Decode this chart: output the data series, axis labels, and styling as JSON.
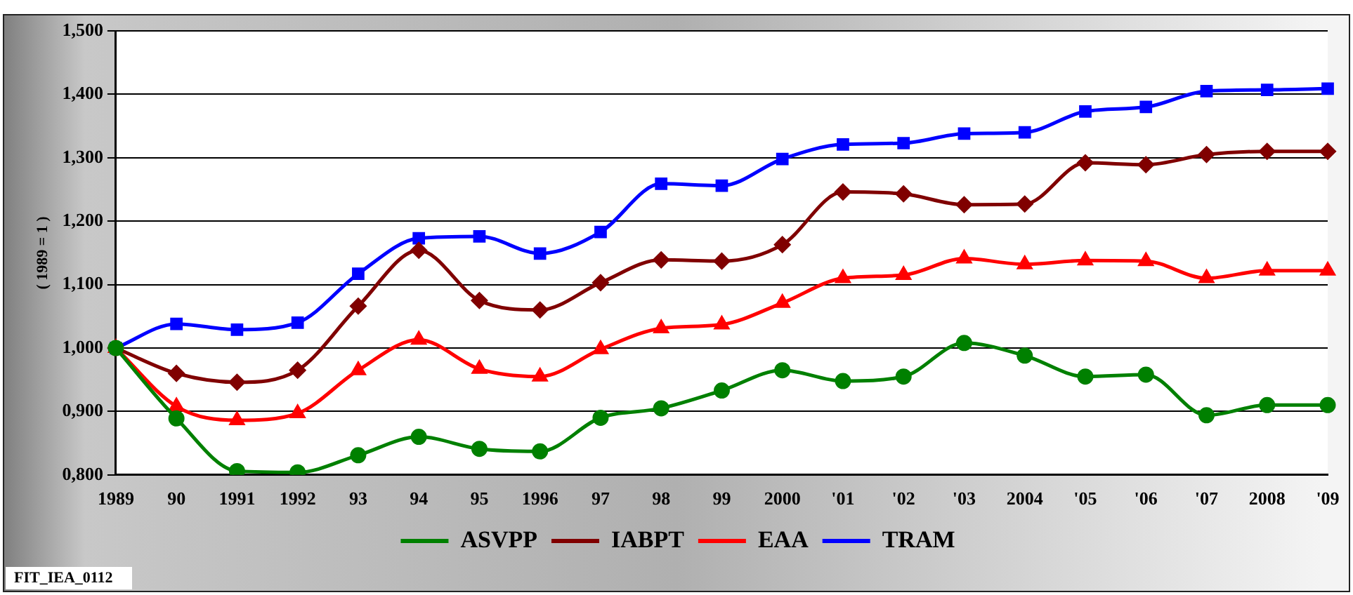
{
  "chart_data": {
    "type": "line",
    "ylabel": "( 1989 = 1 )",
    "categories": [
      "1989",
      "90",
      "1991",
      "1992",
      "93",
      "94",
      "95",
      "1996",
      "97",
      "98",
      "99",
      "2000",
      "'01",
      "'02",
      "'03",
      "2004",
      "'05",
      "'06",
      "'07",
      "2008",
      "'09"
    ],
    "series": [
      {
        "name": "ASVPP",
        "color": "#008000",
        "marker": "circle",
        "values": [
          1.0,
          0.889,
          0.806,
          0.804,
          0.831,
          0.86,
          0.841,
          0.837,
          0.89,
          0.905,
          0.933,
          0.965,
          0.948,
          0.955,
          1.008,
          0.988,
          0.955,
          0.958,
          0.894,
          0.91,
          0.91
        ]
      },
      {
        "name": "IABPT",
        "color": "#800000",
        "marker": "diamond",
        "values": [
          1.0,
          0.96,
          0.946,
          0.965,
          1.066,
          1.154,
          1.075,
          1.06,
          1.103,
          1.139,
          1.137,
          1.163,
          1.246,
          1.243,
          1.226,
          1.227,
          1.292,
          1.289,
          1.305,
          1.31,
          1.31
        ]
      },
      {
        "name": "EAA",
        "color": "#ff0000",
        "marker": "triangle",
        "values": [
          1.0,
          0.908,
          0.886,
          0.897,
          0.965,
          1.013,
          0.967,
          0.955,
          0.998,
          1.031,
          1.037,
          1.071,
          1.11,
          1.115,
          1.141,
          1.132,
          1.138,
          1.137,
          1.11,
          1.122,
          1.122
        ]
      },
      {
        "name": "TRAM",
        "color": "#0000ff",
        "marker": "square",
        "values": [
          1.0,
          1.038,
          1.029,
          1.04,
          1.117,
          1.173,
          1.176,
          1.149,
          1.183,
          1.259,
          1.256,
          1.298,
          1.321,
          1.323,
          1.338,
          1.34,
          1.373,
          1.38,
          1.405,
          1.407,
          1.409
        ]
      }
    ],
    "ylim": [
      0.8,
      1.5
    ],
    "yticks": [
      {
        "value": 0.8,
        "label": "0,800"
      },
      {
        "value": 0.9,
        "label": "0,900"
      },
      {
        "value": 1.0,
        "label": "1,000"
      },
      {
        "value": 1.1,
        "label": "1,100"
      },
      {
        "value": 1.2,
        "label": "1,200"
      },
      {
        "value": 1.3,
        "label": "1,300"
      },
      {
        "value": 1.4,
        "label": "1,400"
      },
      {
        "value": 1.5,
        "label": "1,500"
      }
    ],
    "grid": "y",
    "legend": "bottom",
    "annotations": [
      "FIT_IEA_0112"
    ]
  }
}
